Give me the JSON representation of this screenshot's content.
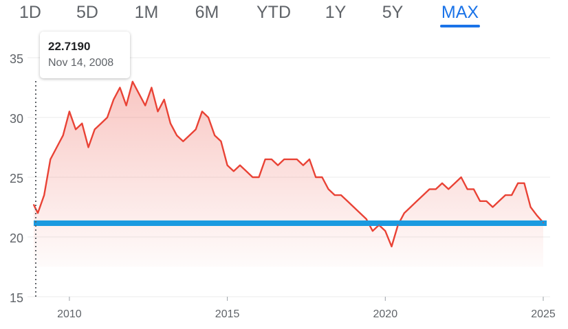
{
  "range_tabs": [
    {
      "label": "1D",
      "active": false
    },
    {
      "label": "5D",
      "active": false
    },
    {
      "label": "1M",
      "active": false
    },
    {
      "label": "6M",
      "active": false
    },
    {
      "label": "YTD",
      "active": false
    },
    {
      "label": "1Y",
      "active": false
    },
    {
      "label": "5Y",
      "active": false
    },
    {
      "label": "MAX",
      "active": true
    }
  ],
  "tooltip": {
    "price": "22.7190",
    "date": "Nov 14, 2008"
  },
  "colors": {
    "line": "#e94235",
    "baseline": "#1a9ae0",
    "accent": "#1a73e8",
    "axis_text": "#5f6368"
  },
  "chart_data": {
    "type": "area",
    "xlabel": "",
    "ylabel": "",
    "xlim": [
      2008.87,
      2025.0
    ],
    "ylim": [
      15,
      35
    ],
    "y_ticks": [
      35,
      30,
      25,
      20,
      15
    ],
    "x_ticks": [
      2010,
      2015,
      2020,
      2025
    ],
    "grid": true,
    "baseline_value": 21.15,
    "hover": {
      "x": 2008.87,
      "y": 22.719
    },
    "series": [
      {
        "x": [
          2008.87,
          2009.0,
          2009.2,
          2009.4,
          2009.6,
          2009.8,
          2010.0,
          2010.2,
          2010.4,
          2010.6,
          2010.8,
          2011.0,
          2011.2,
          2011.4,
          2011.6,
          2011.8,
          2012.0,
          2012.2,
          2012.4,
          2012.6,
          2012.8,
          2013.0,
          2013.2,
          2013.4,
          2013.6,
          2013.8,
          2014.0,
          2014.2,
          2014.4,
          2014.6,
          2014.8,
          2015.0,
          2015.2,
          2015.4,
          2015.6,
          2015.8,
          2016.0,
          2016.2,
          2016.4,
          2016.6,
          2016.8,
          2017.0,
          2017.2,
          2017.4,
          2017.6,
          2017.8,
          2018.0,
          2018.2,
          2018.4,
          2018.6,
          2018.8,
          2019.0,
          2019.2,
          2019.4,
          2019.6,
          2019.8,
          2020.0,
          2020.2,
          2020.4,
          2020.6,
          2020.8,
          2021.0,
          2021.2,
          2021.4,
          2021.6,
          2021.8,
          2022.0,
          2022.2,
          2022.4,
          2022.6,
          2022.8,
          2023.0,
          2023.2,
          2023.4,
          2023.6,
          2023.8,
          2024.0,
          2024.2,
          2024.4,
          2024.6,
          2024.8,
          2025.0
        ],
        "values": [
          22.7,
          22.0,
          23.5,
          26.5,
          27.5,
          28.5,
          30.5,
          29.0,
          29.5,
          27.5,
          29.0,
          29.5,
          30.0,
          31.5,
          32.5,
          31.0,
          33.0,
          32.0,
          31.0,
          32.5,
          30.5,
          31.5,
          29.5,
          28.5,
          28.0,
          28.5,
          29.0,
          30.5,
          30.0,
          28.5,
          28.0,
          26.0,
          25.5,
          26.0,
          25.5,
          25.0,
          25.0,
          26.5,
          26.5,
          26.0,
          26.5,
          26.5,
          26.5,
          26.0,
          26.5,
          25.0,
          25.0,
          24.0,
          23.5,
          23.5,
          23.0,
          22.5,
          22.0,
          21.5,
          20.5,
          21.0,
          20.5,
          19.2,
          21.0,
          22.0,
          22.5,
          23.0,
          23.5,
          24.0,
          24.0,
          24.5,
          24.0,
          24.5,
          25.0,
          24.0,
          24.0,
          23.0,
          23.0,
          22.5,
          23.0,
          23.5,
          23.5,
          24.5,
          24.5,
          22.5,
          21.8,
          21.2
        ]
      }
    ]
  }
}
